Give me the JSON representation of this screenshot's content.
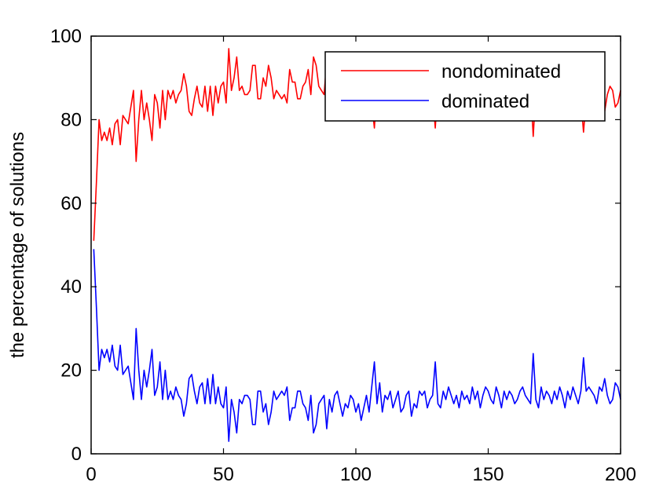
{
  "chart_data": {
    "type": "line",
    "title": "",
    "xlabel": "",
    "ylabel": "the percentage of solutions",
    "xlim": [
      0,
      200
    ],
    "ylim": [
      0,
      100
    ],
    "xticks": [
      0,
      50,
      100,
      150,
      200
    ],
    "yticks": [
      0,
      20,
      40,
      60,
      80,
      100
    ],
    "grid": false,
    "legend_position": "top-right",
    "x_start": 1,
    "series": [
      {
        "name": "nondominated",
        "color": "#ff0000",
        "values": [
          51,
          65,
          80,
          75,
          77,
          75,
          78,
          74,
          79,
          80,
          74,
          81,
          80,
          79,
          83,
          87,
          70,
          80,
          87,
          80,
          84,
          80,
          75,
          86,
          84,
          78,
          87,
          80,
          87,
          85,
          87,
          84,
          86,
          87,
          91,
          88,
          82,
          81,
          85,
          88,
          84,
          83,
          88,
          82,
          88,
          81,
          88,
          84,
          88,
          89,
          84,
          97,
          87,
          90,
          95,
          87,
          88,
          86,
          86,
          87,
          93,
          93,
          85,
          85,
          90,
          88,
          93,
          90,
          85,
          87,
          86,
          85,
          86,
          84,
          92,
          89,
          89,
          85,
          85,
          88,
          89,
          92,
          86,
          95,
          93,
          88,
          87,
          86,
          94,
          87,
          90,
          86,
          85,
          88,
          91,
          88,
          89,
          86,
          87,
          90,
          88,
          92,
          89,
          86,
          90,
          84,
          78,
          88,
          83,
          90,
          86,
          87,
          85,
          89,
          87,
          85,
          90,
          89,
          86,
          85,
          91,
          88,
          89,
          85,
          86,
          85,
          89,
          87,
          86,
          78,
          88,
          89,
          85,
          87,
          84,
          86,
          88,
          86,
          89,
          85,
          87,
          86,
          88,
          84,
          87,
          85,
          89,
          86,
          84,
          85,
          87,
          88,
          84,
          86,
          89,
          85,
          87,
          85,
          86,
          88,
          87,
          85,
          84,
          86,
          87,
          88,
          76,
          87,
          89,
          84,
          87,
          85,
          86,
          88,
          85,
          87,
          84,
          86,
          89,
          85,
          87,
          84,
          86,
          88,
          85,
          77,
          85,
          84,
          85,
          86,
          88,
          84,
          85,
          82,
          86,
          88,
          87,
          83,
          84,
          87
        ]
      },
      {
        "name": "dominated",
        "color": "#0000ff",
        "values": [
          49,
          35,
          20,
          25,
          23,
          25,
          22,
          26,
          21,
          20,
          26,
          19,
          20,
          21,
          17,
          13,
          30,
          20,
          13,
          20,
          16,
          20,
          25,
          14,
          16,
          22,
          13,
          20,
          13,
          15,
          13,
          16,
          14,
          13,
          9,
          12,
          18,
          19,
          15,
          12,
          16,
          17,
          12,
          18,
          12,
          19,
          12,
          16,
          12,
          11,
          16,
          3,
          13,
          10,
          5,
          13,
          12,
          14,
          14,
          13,
          7,
          7,
          15,
          15,
          10,
          12,
          7,
          10,
          15,
          13,
          14,
          15,
          14,
          16,
          8,
          11,
          11,
          15,
          15,
          12,
          11,
          8,
          14,
          5,
          7,
          12,
          13,
          14,
          6,
          13,
          10,
          14,
          15,
          12,
          9,
          12,
          11,
          14,
          13,
          10,
          12,
          8,
          11,
          14,
          10,
          16,
          22,
          12,
          17,
          10,
          14,
          13,
          15,
          11,
          13,
          15,
          10,
          11,
          14,
          15,
          9,
          12,
          11,
          15,
          14,
          15,
          11,
          13,
          14,
          22,
          12,
          11,
          15,
          13,
          16,
          14,
          12,
          14,
          11,
          15,
          13,
          14,
          12,
          16,
          13,
          15,
          11,
          14,
          16,
          15,
          13,
          12,
          16,
          14,
          11,
          15,
          13,
          15,
          14,
          12,
          13,
          15,
          16,
          14,
          13,
          12,
          24,
          13,
          11,
          16,
          13,
          15,
          14,
          12,
          15,
          13,
          16,
          14,
          11,
          15,
          13,
          16,
          14,
          12,
          15,
          23,
          15,
          16,
          15,
          14,
          12,
          16,
          15,
          18,
          14,
          12,
          13,
          17,
          16,
          13
        ]
      }
    ]
  }
}
